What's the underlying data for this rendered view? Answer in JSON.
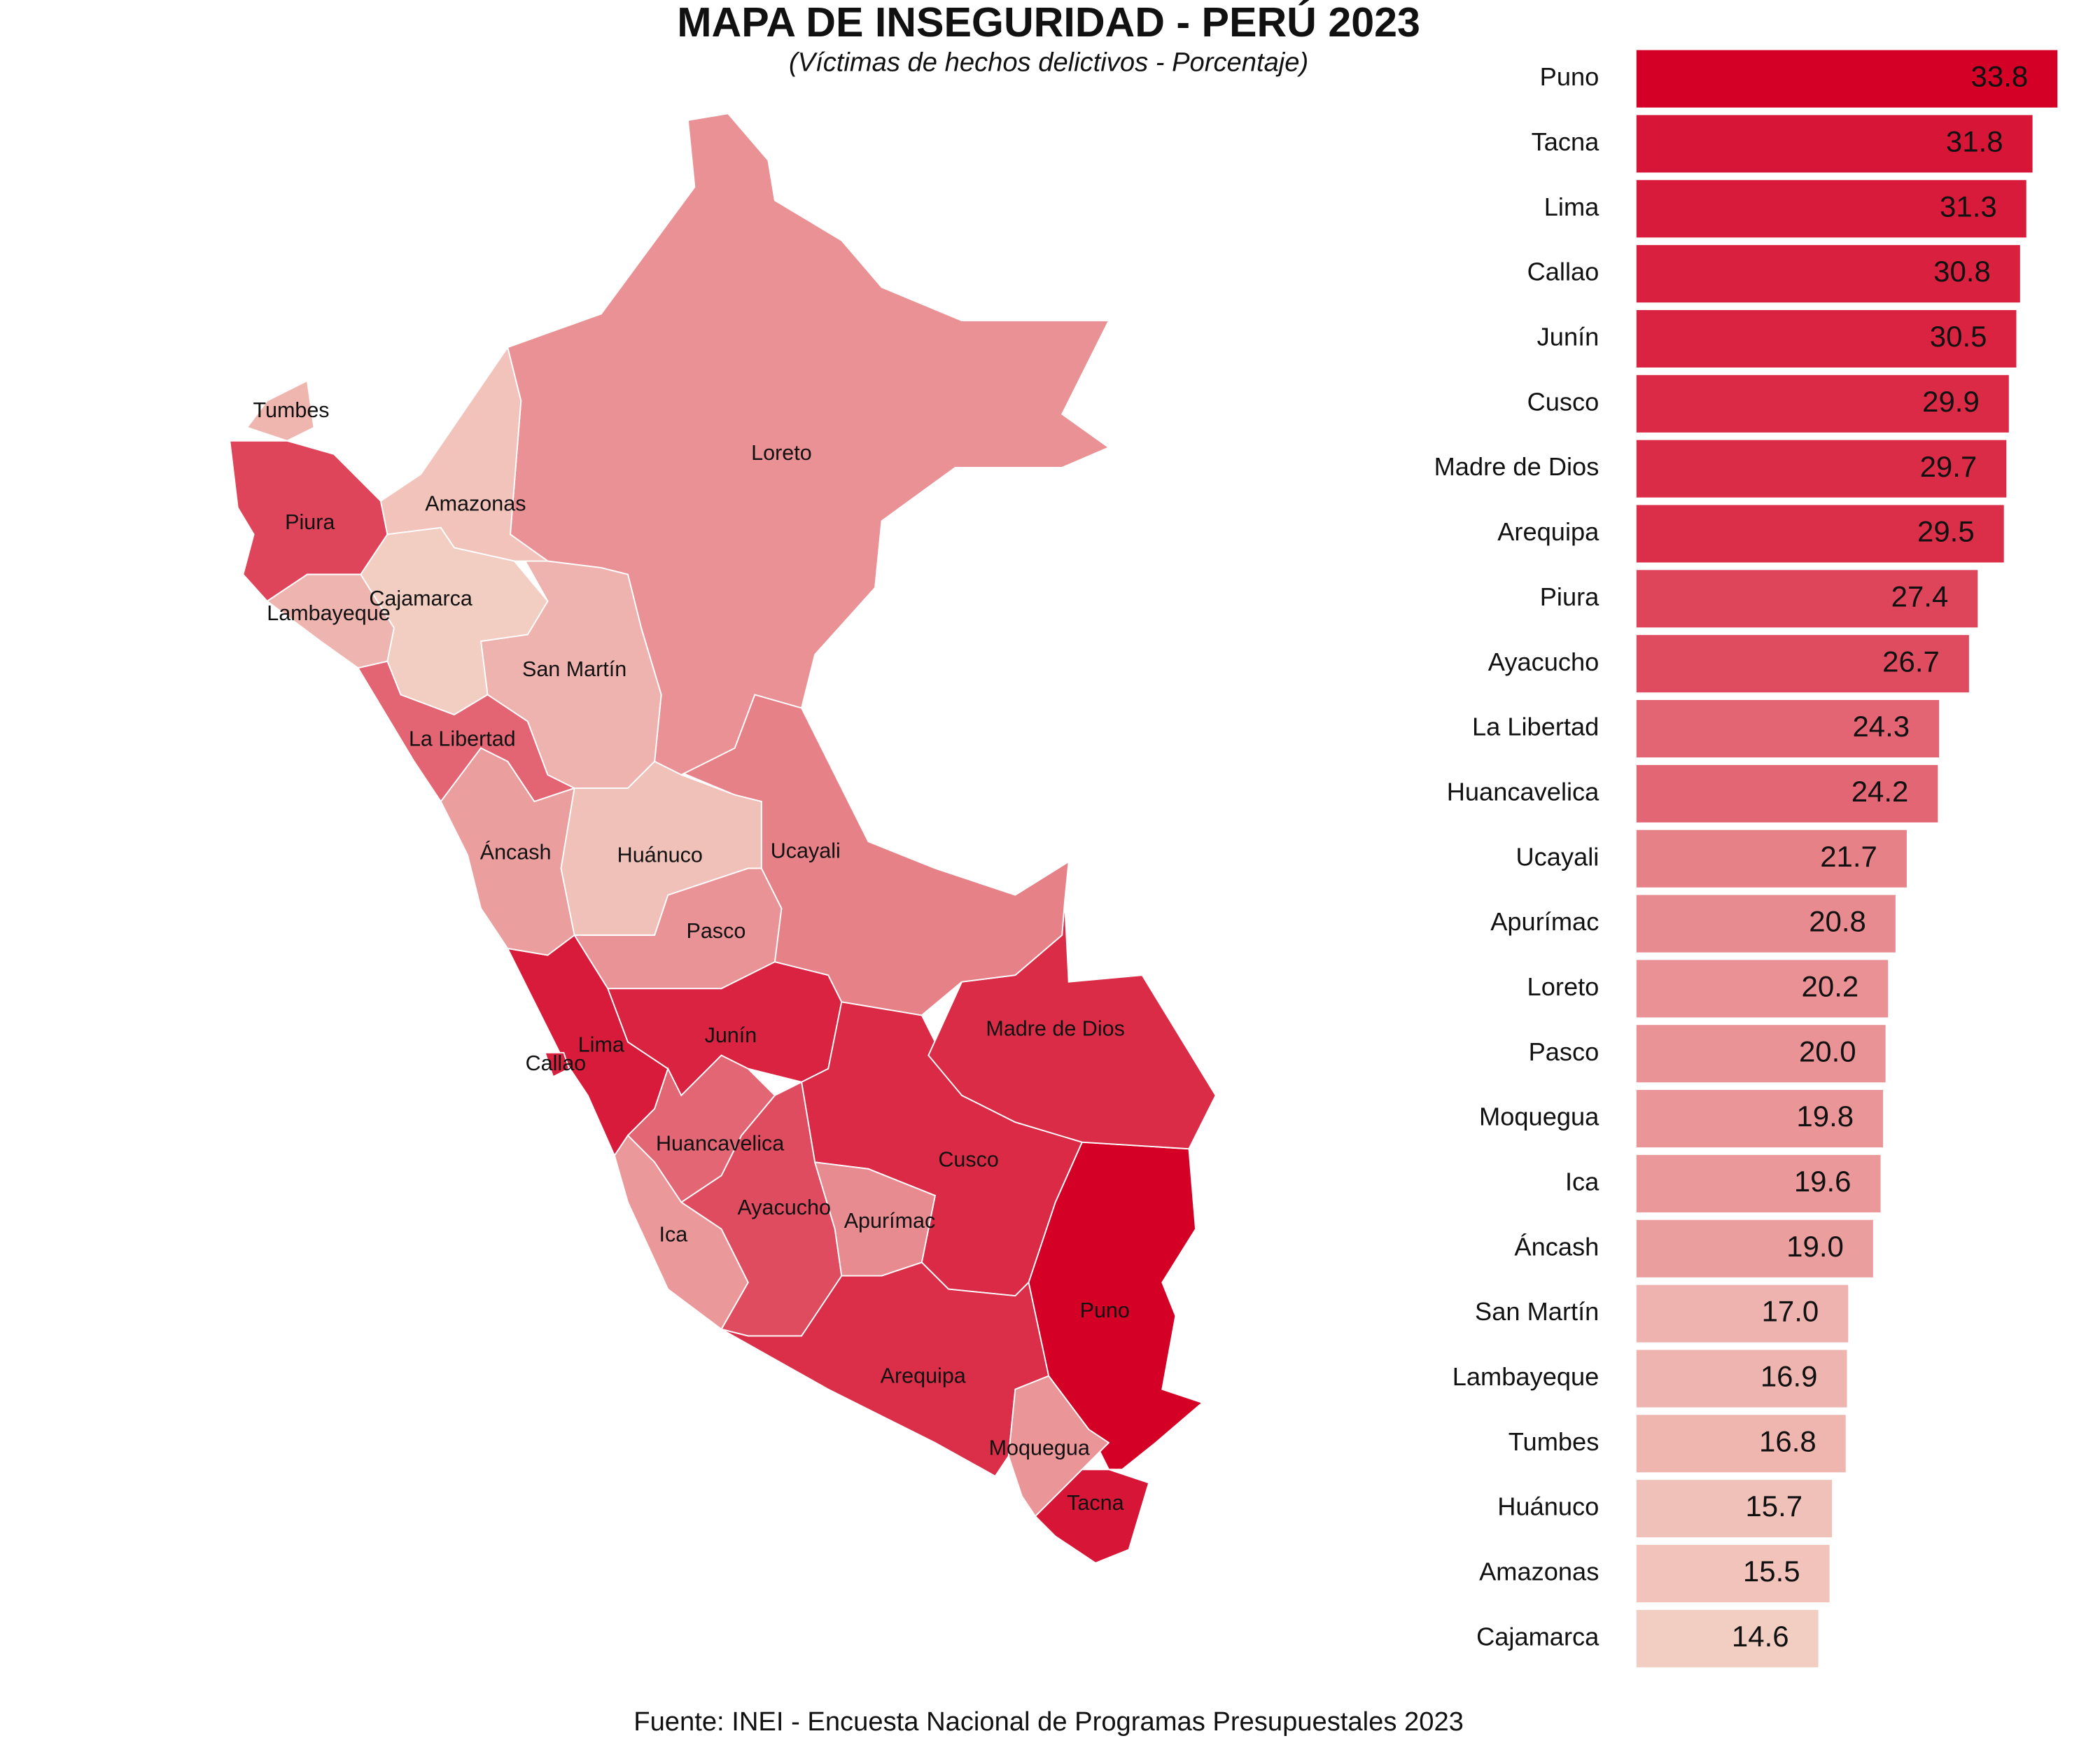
{
  "chart_data": {
    "type": "bar",
    "title": "MAPA DE INSEGURIDAD - PERÚ 2023",
    "subtitle": "(Víctimas de hechos delictivos - Porcentaje)",
    "source": "Fuente: INEI - Encuesta Nacional de Programas Presupuestales 2023",
    "categories": [
      "Puno",
      "Tacna",
      "Lima",
      "Callao",
      "Junín",
      "Cusco",
      "Madre de Dios",
      "Arequipa",
      "Piura",
      "Ayacucho",
      "La Libertad",
      "Huancavelica",
      "Ucayali",
      "Apurímac",
      "Loreto",
      "Pasco",
      "Moquegua",
      "Ica",
      "Áncash",
      "San Martín",
      "Lambayeque",
      "Tumbes",
      "Huánuco",
      "Amazonas",
      "Cajamarca"
    ],
    "values": [
      33.8,
      31.8,
      31.3,
      30.8,
      30.5,
      29.9,
      29.7,
      29.5,
      27.4,
      26.7,
      24.3,
      24.2,
      21.7,
      20.8,
      20.2,
      20.0,
      19.8,
      19.6,
      19.0,
      17.0,
      16.9,
      16.8,
      15.7,
      15.5,
      14.6
    ],
    "value_labels": [
      "33.8",
      "31.8",
      "31.3",
      "30.8",
      "30.5",
      "29.9",
      "29.7",
      "29.5",
      "27.4",
      "26.7",
      "24.3",
      "24.2",
      "21.7",
      "20.8",
      "20.2",
      "20.0",
      "19.8",
      "19.6",
      "19.0",
      "17.0",
      "16.9",
      "16.8",
      "15.7",
      "15.5",
      "14.6"
    ],
    "xlim": [
      0,
      34
    ],
    "color_scale": [
      "#f2cdc2",
      "#d40026"
    ]
  }
}
